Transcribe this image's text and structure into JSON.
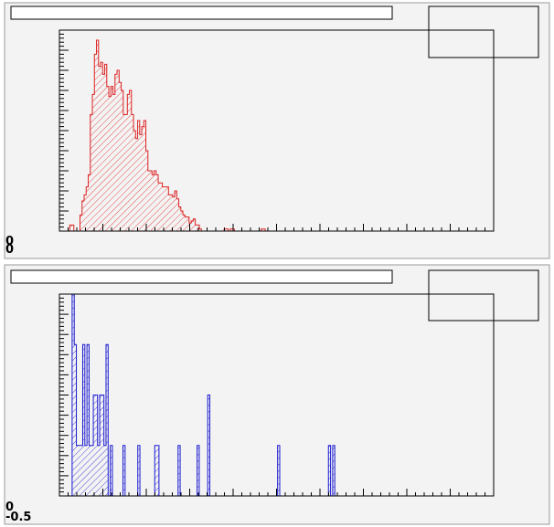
{
  "colors": {
    "pad_background": "#f3f3f3",
    "hist_top": "#dd2222",
    "hist_bottom": "#1a1ad0"
  },
  "chart_data": [
    {
      "type": "bar",
      "histogram": true,
      "fill_pattern": "hatched",
      "color_key": "hist_top",
      "title": "",
      "xlabel": "",
      "ylabel": "",
      "xlim": [
        0,
        100
      ],
      "ylim": [
        0,
        100
      ],
      "yaxis_labels": [
        "0",
        "0"
      ],
      "values": [
        0,
        0,
        0,
        0,
        0,
        3,
        3,
        0,
        0,
        0,
        8,
        15,
        18,
        22,
        28,
        58,
        68,
        88,
        95,
        82,
        84,
        78,
        83,
        72,
        67,
        72,
        68,
        78,
        80,
        74,
        70,
        58,
        58,
        68,
        70,
        58,
        50,
        46,
        55,
        48,
        52,
        55,
        40,
        30,
        30,
        28,
        30,
        28,
        24,
        24,
        22,
        22,
        22,
        18,
        18,
        17,
        20,
        16,
        12,
        10,
        8,
        7,
        7,
        4,
        5,
        6,
        3,
        3,
        1,
        0,
        0,
        0,
        0,
        0,
        0,
        0,
        0,
        0,
        0,
        0,
        1,
        1,
        0,
        1,
        1,
        0,
        0,
        0,
        0,
        0,
        0,
        0,
        0,
        0,
        0,
        0,
        0,
        0,
        1,
        1,
        0,
        0,
        0,
        0,
        0,
        0,
        0,
        0,
        0,
        0,
        0,
        0,
        0,
        0,
        0,
        0,
        0,
        0,
        0,
        0,
        0,
        0,
        0,
        0,
        0,
        0,
        0,
        0,
        0,
        0,
        0,
        0,
        0,
        0,
        0,
        0,
        0,
        0,
        0,
        0,
        0,
        0,
        0,
        0,
        0,
        0,
        0,
        0,
        0,
        0,
        0,
        0,
        0,
        0,
        0,
        0,
        0,
        0,
        0,
        0,
        0,
        0,
        0,
        0,
        0,
        0,
        0,
        0,
        0,
        0,
        0,
        0,
        0,
        0,
        0,
        0,
        0,
        0,
        0,
        0,
        0,
        0,
        0,
        0,
        0,
        0,
        0,
        0,
        0,
        0,
        0,
        0,
        0,
        0,
        0,
        0,
        0,
        0,
        0,
        0,
        0,
        0,
        0,
        0,
        0,
        0,
        0,
        0,
        0,
        0,
        0
      ]
    },
    {
      "type": "bar",
      "histogram": true,
      "fill_pattern": "hatched",
      "color_key": "hist_bottom",
      "title": "",
      "xlabel": "",
      "ylabel": "",
      "xlim": [
        0,
        100
      ],
      "ylim": [
        0,
        8
      ],
      "yaxis_labels": [
        "0",
        "-0.5"
      ],
      "values": [
        0,
        0,
        0,
        0,
        0,
        0,
        8,
        6,
        2,
        2,
        2,
        6,
        2,
        6,
        2,
        2,
        4,
        4,
        2,
        4,
        4,
        2,
        6,
        0,
        2,
        0,
        0,
        0,
        0,
        0,
        2,
        0,
        0,
        0,
        0,
        0,
        0,
        2,
        0,
        0,
        0,
        0,
        0,
        0,
        0,
        2,
        2,
        0,
        0,
        0,
        0,
        0,
        0,
        0,
        0,
        0,
        2,
        0,
        0,
        0,
        0,
        0,
        0,
        0,
        0,
        2,
        0,
        0,
        0,
        0,
        4,
        0,
        0,
        0,
        0,
        0,
        0,
        0,
        0,
        0,
        0,
        0,
        0,
        0,
        0,
        0,
        0,
        0,
        0,
        0,
        0,
        0,
        0,
        0,
        0,
        0,
        0,
        0,
        0,
        0,
        0,
        0,
        0,
        2,
        0,
        0,
        0,
        0,
        0,
        0,
        0,
        0,
        0,
        0,
        0,
        0,
        0,
        0,
        0,
        0,
        0,
        0,
        0,
        0,
        0,
        0,
        0,
        2,
        0,
        2,
        0,
        0,
        0,
        0,
        0,
        0,
        0,
        0,
        0,
        0,
        0,
        0,
        0,
        0,
        0,
        0,
        0,
        0,
        0,
        0,
        0,
        0,
        0,
        0,
        0,
        0,
        0,
        0,
        0,
        0,
        0,
        0,
        0,
        0,
        0,
        0,
        0,
        0,
        0,
        0,
        0,
        0,
        0,
        0,
        0,
        0,
        0,
        0,
        0,
        0,
        0,
        0,
        0,
        0,
        0,
        0,
        0,
        0,
        0,
        0,
        0,
        0,
        0,
        0,
        0,
        0,
        0,
        0,
        0,
        0,
        0,
        0,
        0,
        0,
        0
      ]
    }
  ]
}
